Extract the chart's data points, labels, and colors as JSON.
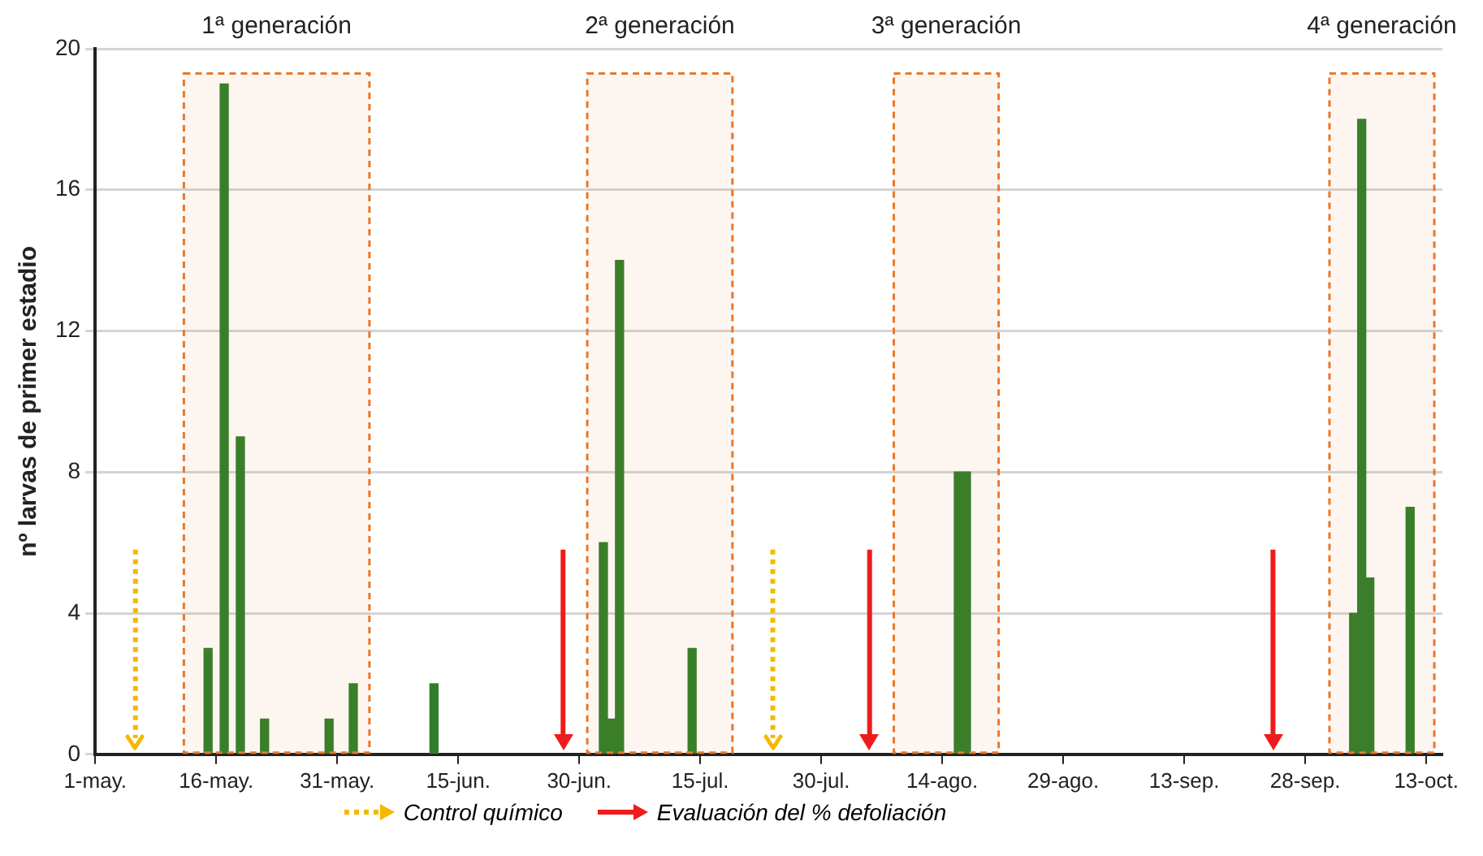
{
  "chart_data": {
    "type": "bar",
    "ylabel": "nº larvas de primer estadio",
    "x": [
      "--05-15",
      "--05-17",
      "--05-19",
      "--05-22",
      "--05-30",
      "--06-02",
      "--06-12",
      "--07-03",
      "--07-04",
      "--07-05",
      "--07-14",
      "--08-16",
      "--08-17",
      "--10-04",
      "--10-05",
      "--10-06",
      "--10-11"
    ],
    "values": [
      3,
      19,
      9,
      1,
      1,
      2,
      2,
      6,
      1,
      14,
      3,
      8,
      8,
      4,
      18,
      5,
      7
    ],
    "color": "#2f7f2a",
    "xlim": [
      "--05-01",
      "--10-15"
    ],
    "xticks": [
      {
        "value": "--05-01",
        "label": "1-may."
      },
      {
        "value": "--05-16",
        "label": "16-may."
      },
      {
        "value": "--05-31",
        "label": "31-may."
      },
      {
        "value": "--06-15",
        "label": "15-jun."
      },
      {
        "value": "--06-30",
        "label": "30-jun."
      },
      {
        "value": "--07-15",
        "label": "15-jul."
      },
      {
        "value": "--07-30",
        "label": "30-jul."
      },
      {
        "value": "--08-14",
        "label": "14-ago."
      },
      {
        "value": "--08-29",
        "label": "29-ago."
      },
      {
        "value": "--09-13",
        "label": "13-sep."
      },
      {
        "value": "--09-28",
        "label": "28-sep."
      },
      {
        "value": "--10-13",
        "label": "13-oct."
      }
    ],
    "ylim": [
      0,
      20
    ],
    "yticks": [
      0,
      4,
      8,
      12,
      16,
      20
    ],
    "grid": "y",
    "legend": "bottom",
    "bands": [
      {
        "axis": "x",
        "from": "--05-12",
        "to": "--06-04",
        "label": "1ª generación",
        "color": "#e8782a"
      },
      {
        "axis": "x",
        "from": "--07-01",
        "to": "--07-19",
        "label": "2ª generación",
        "color": "#e8782a"
      },
      {
        "axis": "x",
        "from": "--08-08",
        "to": "--08-21",
        "label": "3ª generación",
        "color": "#e8782a"
      },
      {
        "axis": "x",
        "from": "--10-01",
        "to": "--10-14",
        "label": "4ª generación",
        "color": "#e8782a"
      }
    ],
    "ref_lines": [
      {
        "axis": "x",
        "value": "--05-06",
        "label": "Control químico",
        "color": "#f5b800",
        "line_style": "dotted"
      },
      {
        "axis": "x",
        "value": "--06-28",
        "label": "Evaluación del % defoliación",
        "color": "#ee1c1c",
        "line_style": "solid"
      },
      {
        "axis": "x",
        "value": "--07-24",
        "color": "#f5b800",
        "line_style": "dotted"
      },
      {
        "axis": "x",
        "value": "--08-05",
        "color": "#ee1c1c",
        "line_style": "solid"
      },
      {
        "axis": "x",
        "value": "--09-24",
        "color": "#ee1c1c",
        "line_style": "solid"
      }
    ]
  }
}
